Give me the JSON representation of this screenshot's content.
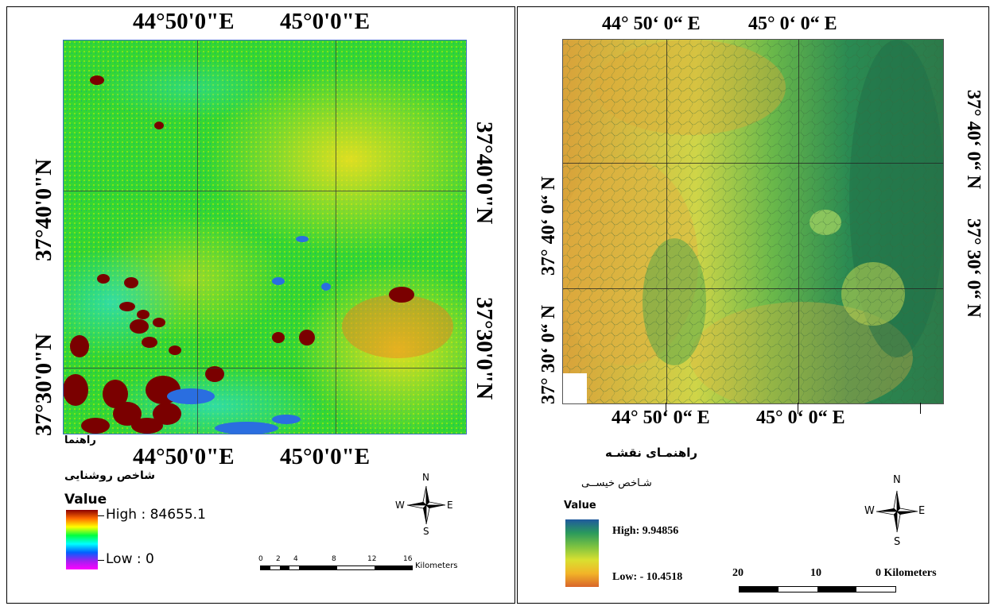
{
  "left": {
    "top_labels": [
      "44°50'0\"E",
      "45°0'0\"E"
    ],
    "bottom_labels": [
      "44°50'0\"E",
      "45°0'0\"E"
    ],
    "left_labels": [
      "37°40'0\"N",
      "37°30'0\"N"
    ],
    "right_labels": [
      "37°40'0\"N",
      "37°30'0\"N"
    ],
    "legend_title": "راهنما",
    "layer_name": "شاخص روشنایی",
    "value_label": "Value",
    "high_label": "High : 84655.1",
    "low_label": "Low : 0",
    "scale_ticks": [
      "0",
      "2",
      "4",
      "8",
      "12",
      "16"
    ],
    "scale_unit": "Kilometers",
    "compass": {
      "n": "N",
      "s": "S",
      "e": "E",
      "w": "W"
    },
    "ramp_colors": [
      "#8b0000",
      "#ff6a00",
      "#ffff00",
      "#00ff40",
      "#00ffff",
      "#0060ff",
      "#a020f0",
      "#ff00ff"
    ]
  },
  "right": {
    "top_labels": [
      "44° 50‘ 0“ E",
      "45° 0‘ 0“ E"
    ],
    "bottom_labels": [
      "44° 50‘ 0“ E",
      "45° 0‘ 0“ E"
    ],
    "left_labels": [
      "37° 40‘ 0“ N",
      "37° 30‘ 0“ N"
    ],
    "right_labels": [
      "37° 40‘ 0“ N",
      "37° 30‘ 0“ N"
    ],
    "legend_title": "راهنمـای نقشـه",
    "layer_name": "شـاخص خیســی",
    "value_label": "Value",
    "high_label": "High: 9.94856",
    "low_label": "Low: - 10.4518",
    "scale_ticks": [
      "20",
      "10",
      "0 Kilometers"
    ],
    "compass": {
      "n": "N",
      "s": "S",
      "e": "E",
      "w": "W"
    },
    "ramp_colors": [
      "#1f5a9e",
      "#2a9a5c",
      "#7bc242",
      "#d9e030",
      "#f2b428",
      "#d9662a"
    ]
  }
}
